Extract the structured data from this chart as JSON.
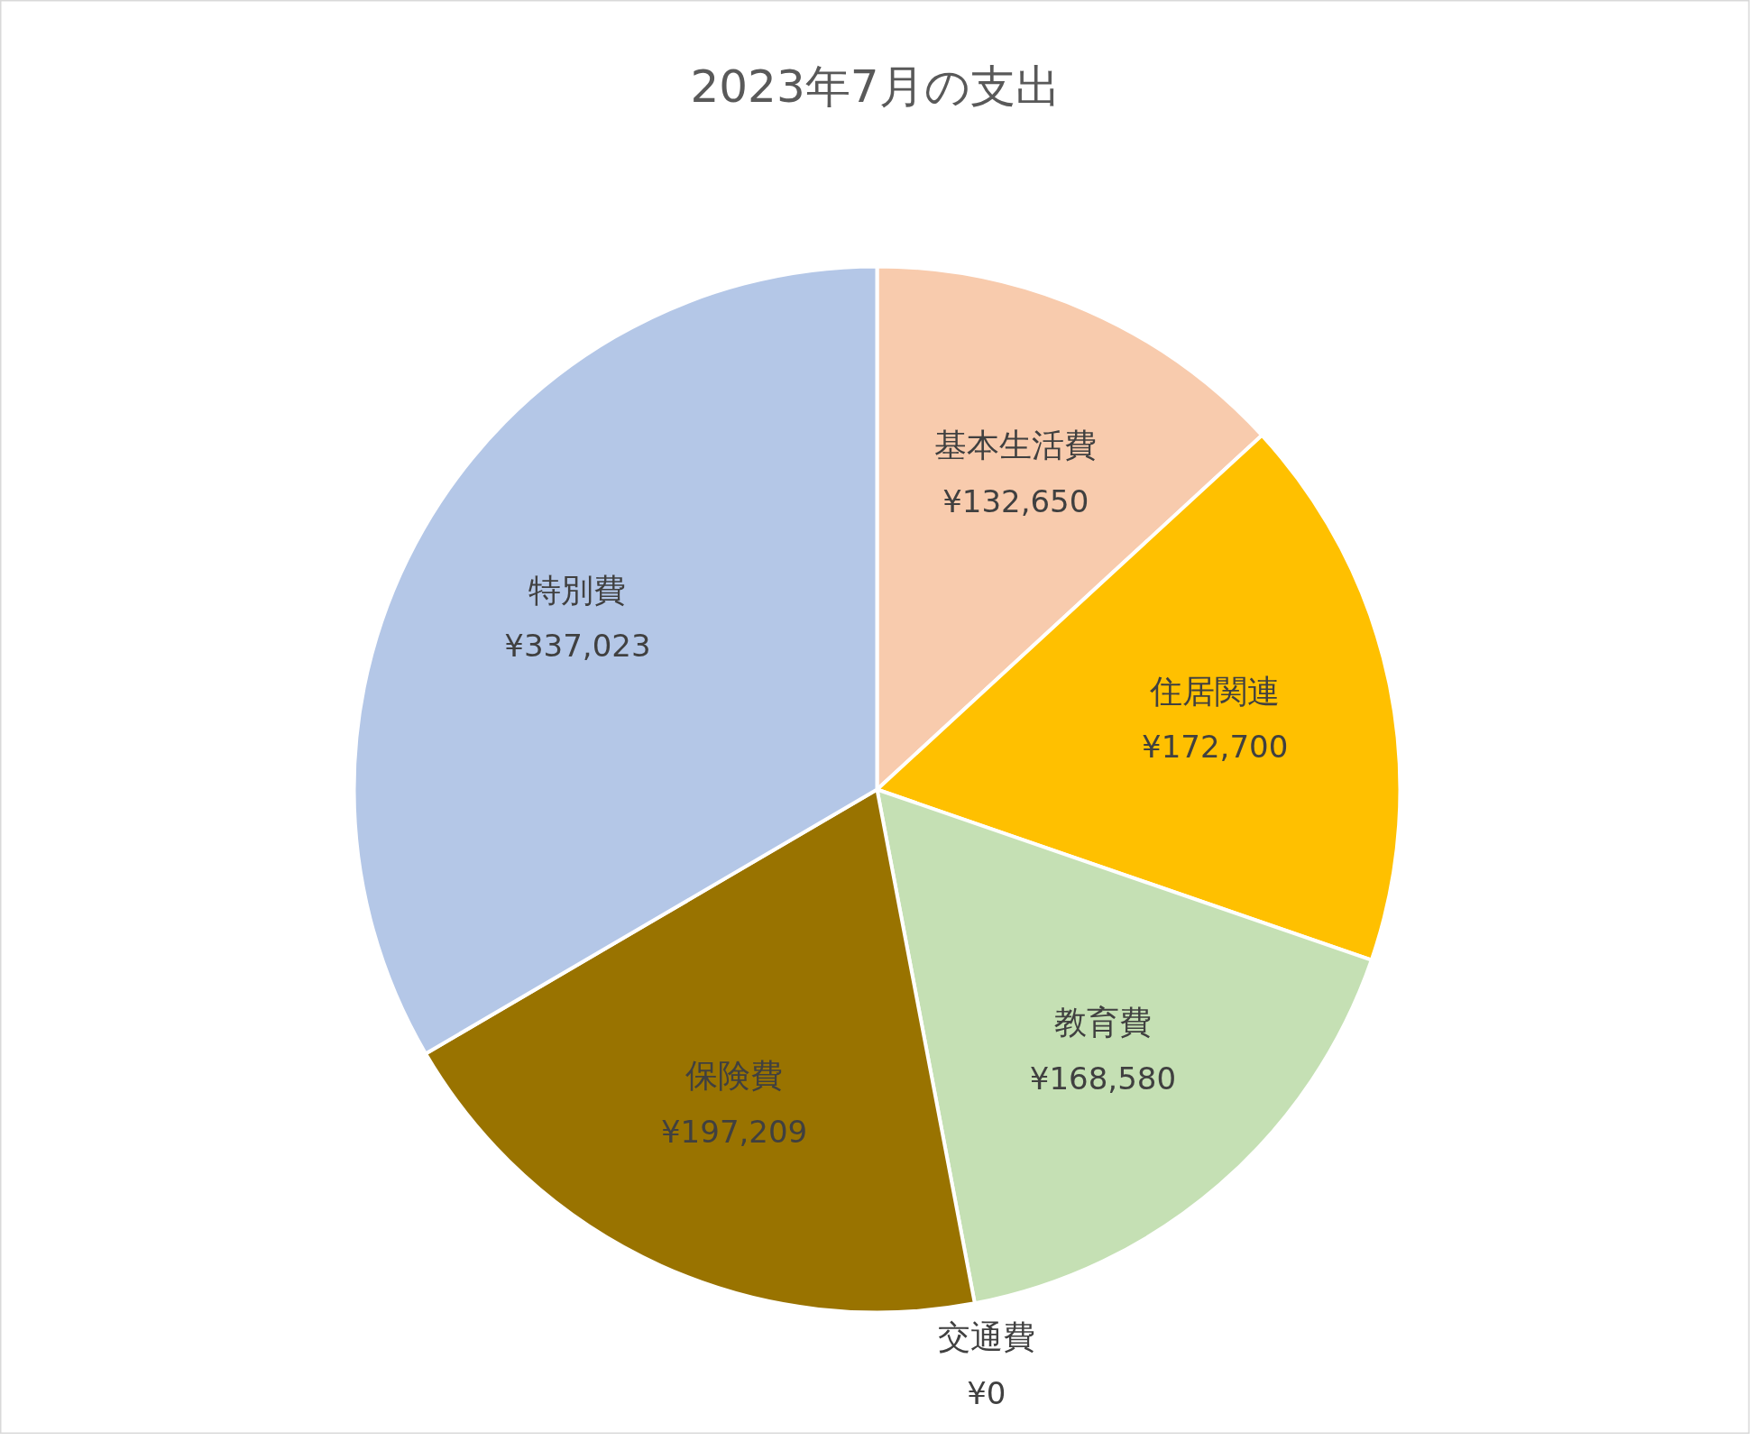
{
  "chart_data": {
    "type": "pie",
    "title": "2023年7月の支出",
    "categories": [
      "基本生活費",
      "住居関連",
      "教育費",
      "交通費",
      "保険費",
      "特別費"
    ],
    "values": [
      132650,
      172700,
      168580,
      0,
      197209,
      337023
    ],
    "value_labels": [
      "¥132,650",
      "¥172,700",
      "¥168,580",
      "¥0",
      "¥197,209",
      "¥337,023"
    ],
    "colors": [
      "#f8cbad",
      "#ffc000",
      "#c5e0b4",
      "#f4b183",
      "#997300",
      "#b4c7e7"
    ]
  }
}
